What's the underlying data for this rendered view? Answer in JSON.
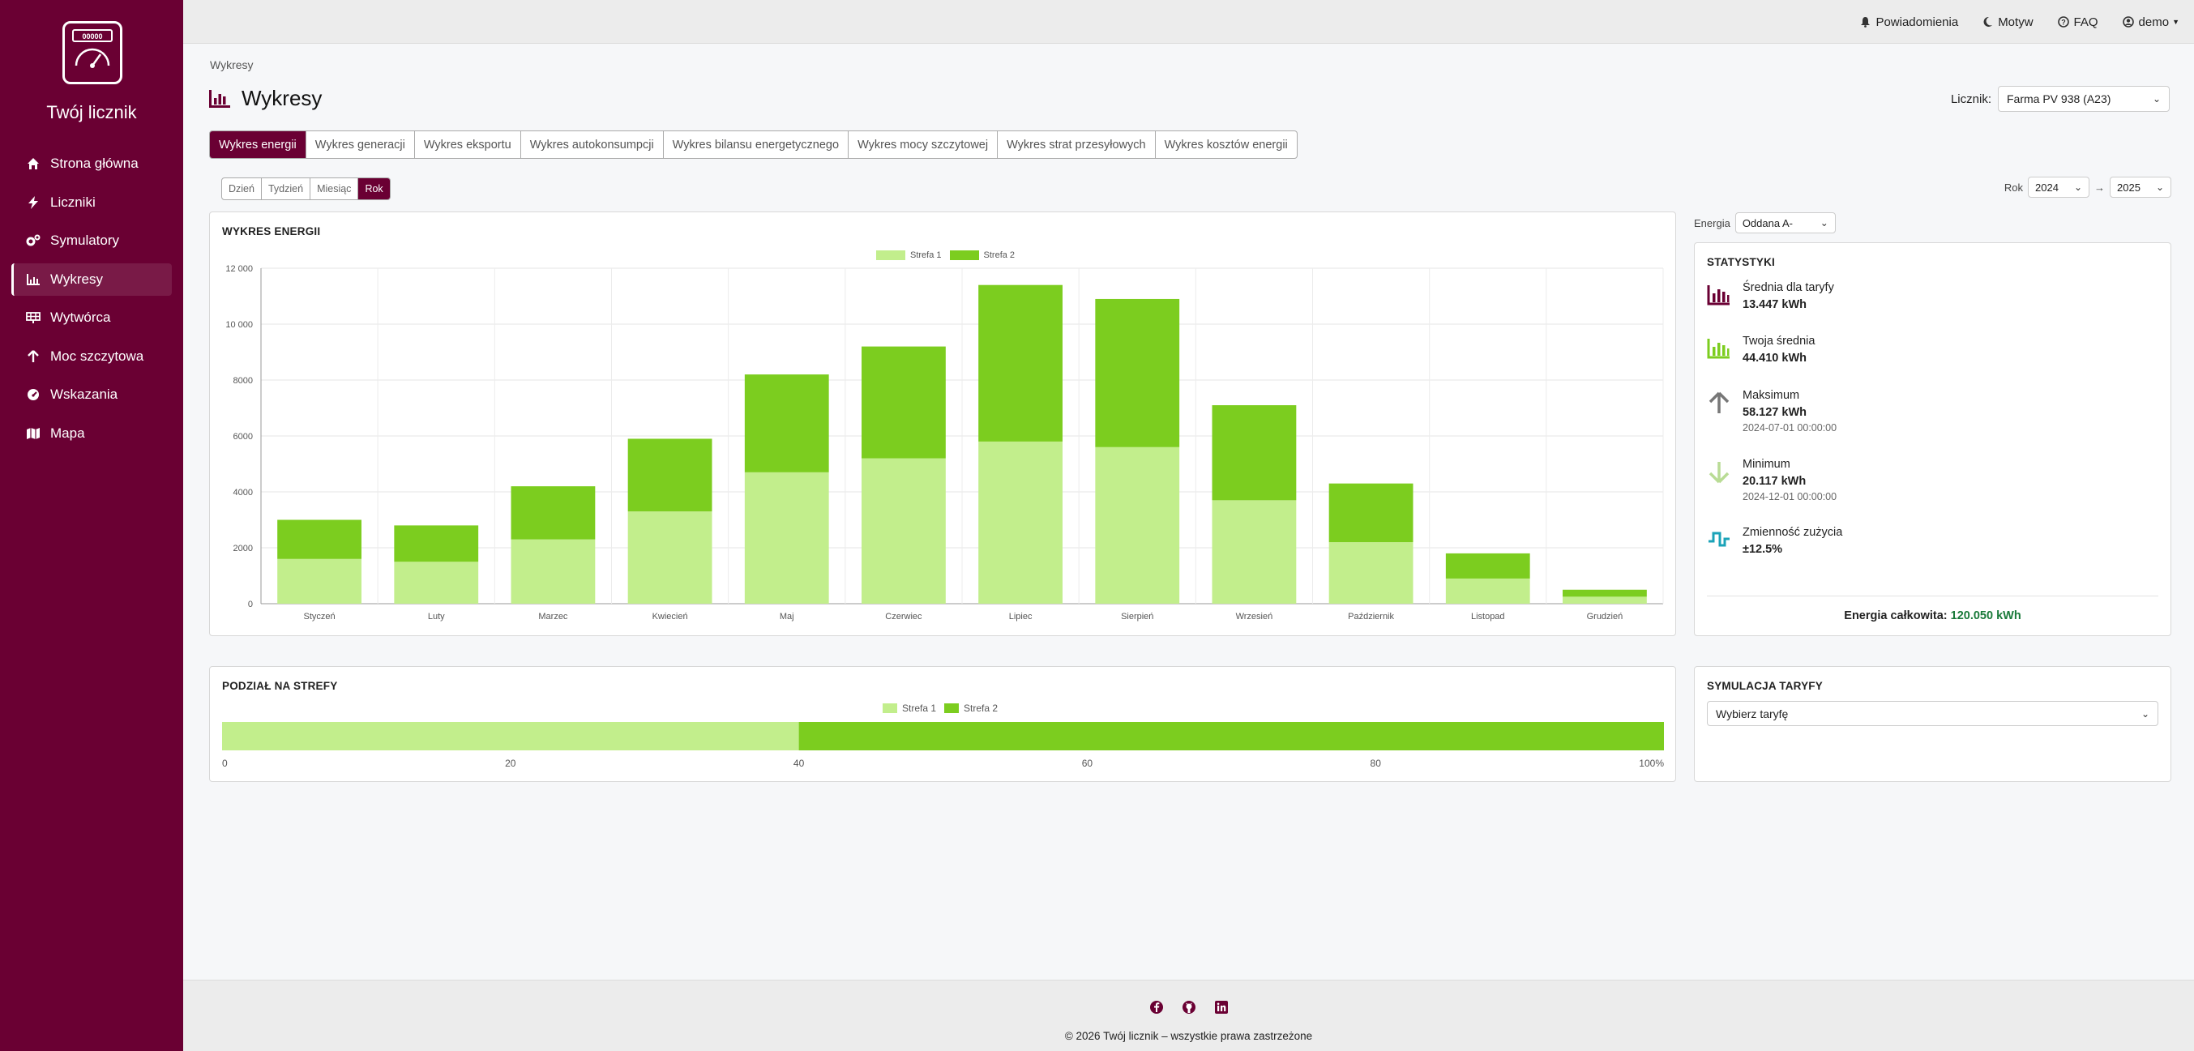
{
  "app": {
    "title": "Twój licznik",
    "logo_text": "00000"
  },
  "sidebar": {
    "items": [
      {
        "label": "Strona główna",
        "icon": "home-icon"
      },
      {
        "label": "Liczniki",
        "icon": "bolt-icon"
      },
      {
        "label": "Symulatory",
        "icon": "gears-icon"
      },
      {
        "label": "Wykresy",
        "icon": "chart-icon",
        "active": true
      },
      {
        "label": "Wytwórca",
        "icon": "solar-panel-icon"
      },
      {
        "label": "Moc szczytowa",
        "icon": "arrow-up-icon"
      },
      {
        "label": "Wskazania",
        "icon": "gauge-icon"
      },
      {
        "label": "Mapa",
        "icon": "map-icon"
      }
    ]
  },
  "topbar": {
    "notifications": "Powiadomienia",
    "theme": "Motyw",
    "faq": "FAQ",
    "user": "demo"
  },
  "breadcrumb": "Wykresy",
  "page_title": "Wykresy",
  "meter": {
    "label": "Licznik:",
    "value": "Farma PV 938 (A23)"
  },
  "tabs": [
    "Wykres energii",
    "Wykres generacji",
    "Wykres eksportu",
    "Wykres autokonsumpcji",
    "Wykres bilansu energetycznego",
    "Wykres mocy szczytowej",
    "Wykres strat przesyłowych",
    "Wykres kosztów energii"
  ],
  "periods": [
    "Dzień",
    "Tydzień",
    "Miesiąc",
    "Rok"
  ],
  "year_range": {
    "label": "Rok",
    "from": "2024",
    "arrow": "→",
    "to": "2025"
  },
  "energy_filter": {
    "label": "Energia",
    "value": "Oddana A-"
  },
  "colors": {
    "brand": "#6a0033",
    "zone1": "#c2ee8c",
    "zone2": "#7ccd1f",
    "total": "#1a7a3a"
  },
  "energy_chart": {
    "title": "WYKRES ENERGII"
  },
  "chart_data": [
    {
      "type": "bar",
      "stacked": true,
      "categories": [
        "Styczeń",
        "Luty",
        "Marzec",
        "Kwiecień",
        "Maj",
        "Czerwiec",
        "Lipiec",
        "Sierpień",
        "Wrzesień",
        "Październik",
        "Listopad",
        "Grudzień"
      ],
      "series": [
        {
          "name": "Strefa 1",
          "values": [
            1600,
            1500,
            2300,
            3300,
            4700,
            5200,
            5800,
            5600,
            3700,
            2200,
            900,
            250
          ]
        },
        {
          "name": "Strefa 2",
          "values": [
            1400,
            1300,
            1900,
            2600,
            3500,
            4000,
            5600,
            5300,
            3400,
            2100,
            900,
            250
          ]
        }
      ],
      "y_ticks": [
        "0",
        "2000",
        "4000",
        "6000",
        "8000",
        "10 000",
        "12 000"
      ],
      "ylim": [
        0,
        12000
      ],
      "grid": true,
      "legend": "top-center"
    },
    {
      "type": "bar",
      "stacked": true,
      "orientation": "horizontal",
      "series": [
        {
          "name": "Strefa 1",
          "values": [
            40
          ]
        },
        {
          "name": "Strefa 2",
          "values": [
            60
          ]
        }
      ],
      "x_ticks": [
        "0",
        "20",
        "40",
        "60",
        "80",
        "100%"
      ],
      "xlim": [
        0,
        100
      ],
      "legend": "top-center"
    }
  ],
  "stats": {
    "title": "STATYSTYKI",
    "items": [
      {
        "label": "Średnia dla taryfy",
        "value": "13.447 kWh",
        "icon": "bar-chart-icon"
      },
      {
        "label": "Twoja średnia",
        "value": "44.410 kWh",
        "icon": "bar-chart-green-icon"
      },
      {
        "label": "Maksimum",
        "value": "58.127 kWh",
        "date": "2024-07-01 00:00:00",
        "icon": "arrow-up-icon"
      },
      {
        "label": "Minimum",
        "value": "20.117 kWh",
        "date": "2024-12-01 00:00:00",
        "icon": "arrow-down-icon"
      },
      {
        "label": "Zmienność zużycia",
        "value": "±12.5%",
        "icon": "wave-icon"
      }
    ],
    "total_label": "Energia całkowita:",
    "total_value": "120.050 kWh"
  },
  "zones": {
    "title": "PODZIAŁ NA STREFY"
  },
  "tariff": {
    "title": "SYMULACJA TARYFY",
    "placeholder": "Wybierz taryfę"
  },
  "footer": {
    "text": "© 2026 Twój licznik – wszystkie prawa zastrzeżone",
    "icons": [
      "facebook-icon",
      "github-icon",
      "linkedin-icon"
    ]
  }
}
